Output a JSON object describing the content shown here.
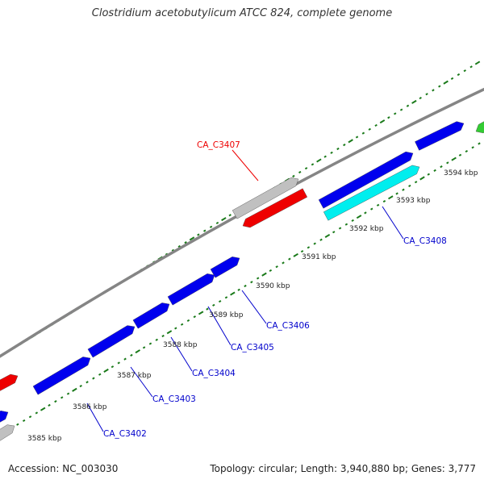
{
  "title": "Clostridium acetobutylicum ATCC 824, complete genome",
  "footer": {
    "accession": "Accession: NC_003030",
    "summary": "Topology: circular; Length: 3,940,880 bp; Genes: 3,777"
  },
  "colors": {
    "backbone": "#858585",
    "forward_gene": "#0000ee",
    "reverse_gene": "#ee0000",
    "rna_gene": "#c0c0c0",
    "highlight_gene": "#00eeee",
    "other_gene": "#33cc33",
    "tick": "#1a7a1a",
    "gene_label": "#0000cc",
    "reverse_label": "#ee0000",
    "scale_label": "#222222"
  },
  "scale_labels": [
    "3585 kbp",
    "3586 kbp",
    "3587 kbp",
    "3588 kbp",
    "3589 kbp",
    "3590 kbp",
    "3591 kbp",
    "3592 kbp",
    "3593 kbp",
    "3594 kbp"
  ],
  "gene_labels": [
    {
      "text": "CA_C3402",
      "kind": "forward"
    },
    {
      "text": "CA_C3403",
      "kind": "forward"
    },
    {
      "text": "CA_C3404",
      "kind": "forward"
    },
    {
      "text": "CA_C3405",
      "kind": "forward"
    },
    {
      "text": "CA_C3406",
      "kind": "forward"
    },
    {
      "text": "CA_C3407",
      "kind": "reverse"
    },
    {
      "text": "CA_C3408",
      "kind": "forward"
    }
  ]
}
